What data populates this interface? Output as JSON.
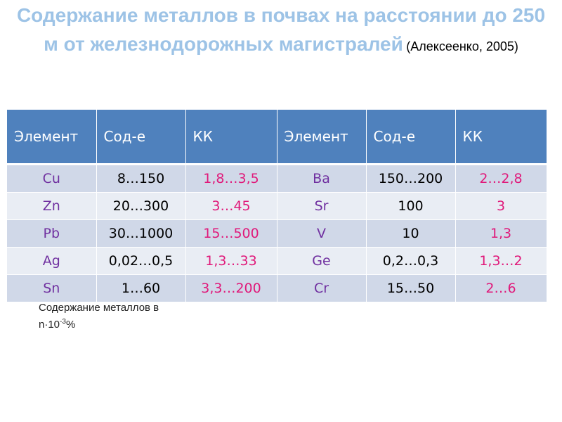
{
  "title": {
    "main": "Содержание металлов в почвах на расстоянии до 250 м от железнодорожных магистралей",
    "author": "(Алексеенко, 2005)"
  },
  "table": {
    "headers": [
      "Элемент",
      "Сод-е",
      "КК",
      "Элемент",
      "Сод-е",
      "КК"
    ],
    "rows": [
      [
        "Cu",
        "8…150",
        "1,8…3,5",
        "Ba",
        "150…200",
        "2…2,8"
      ],
      [
        "Zn",
        "20…300",
        "3…45",
        "Sr",
        "100",
        "3"
      ],
      [
        "Pb",
        "30…1000",
        "15…500",
        "V",
        "10",
        "1,3"
      ],
      [
        "Ag",
        "0,02…0,5",
        "1,3…33",
        "Ge",
        "0,2…0,3",
        "1,3…2"
      ],
      [
        "Sn",
        "1…60",
        "3,3…200",
        "Cr",
        "15…50",
        "2…6"
      ]
    ]
  },
  "note": {
    "line1": "Содержание металлов в",
    "line2_base": "n·10",
    "line2_exp": "-3",
    "line2_unit": "%"
  },
  "colors": {
    "title": "#9dc3e6",
    "header_bg": "#4f81bd",
    "row_odd": "#d0d8e8",
    "row_even": "#e9edf4",
    "element_text": "#7030a0",
    "kk_text": "#e0197a"
  }
}
